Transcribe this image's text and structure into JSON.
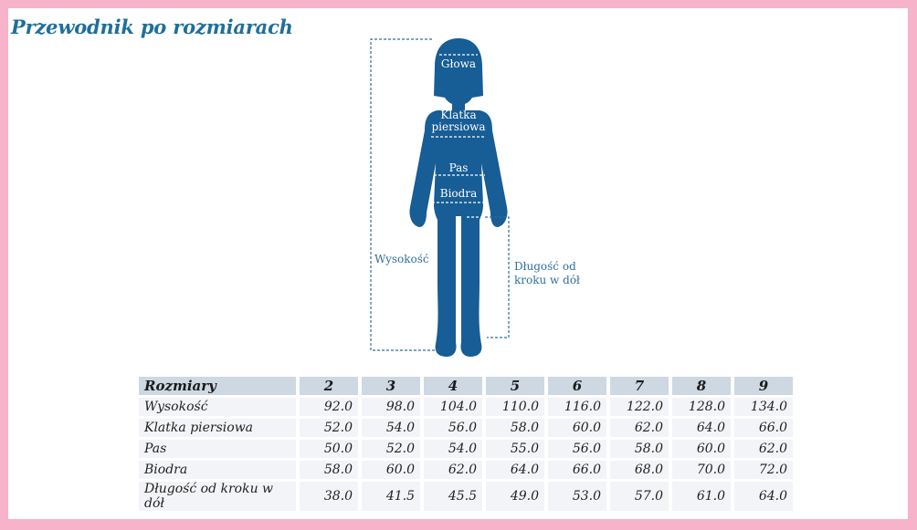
{
  "title": "Przewodnik po rozmiarach",
  "colors": {
    "border": "#f7b3c9",
    "silhouette": "#175d96",
    "accent": "#1e6f9b"
  },
  "figure": {
    "labels": {
      "head": "Głowa",
      "chest_line1": "Klatka",
      "chest_line2": "piersiowa",
      "waist": "Pas",
      "hips": "Biodra",
      "height": "Wysokość",
      "inseam_line1": "Długość od",
      "inseam_line2": "kroku w dół"
    }
  },
  "table": {
    "header_label": "Rozmiary",
    "sizes": [
      "2",
      "3",
      "4",
      "5",
      "6",
      "7",
      "8",
      "9"
    ],
    "rows": [
      {
        "label": "Wysokość",
        "values": [
          "92.0",
          "98.0",
          "104.0",
          "110.0",
          "116.0",
          "122.0",
          "128.0",
          "134.0"
        ]
      },
      {
        "label": "Klatka piersiowa",
        "values": [
          "52.0",
          "54.0",
          "56.0",
          "58.0",
          "60.0",
          "62.0",
          "64.0",
          "66.0"
        ]
      },
      {
        "label": "Pas",
        "values": [
          "50.0",
          "52.0",
          "54.0",
          "55.0",
          "56.0",
          "58.0",
          "60.0",
          "62.0"
        ]
      },
      {
        "label": "Biodra",
        "values": [
          "58.0",
          "60.0",
          "62.0",
          "64.0",
          "66.0",
          "68.0",
          "70.0",
          "72.0"
        ]
      },
      {
        "label": "Długość od kroku w dół",
        "values": [
          "38.0",
          "41.5",
          "45.5",
          "49.0",
          "53.0",
          "57.0",
          "61.0",
          "64.0"
        ]
      }
    ]
  }
}
